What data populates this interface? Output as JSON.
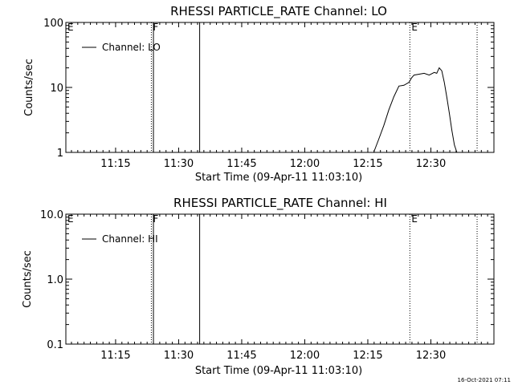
{
  "chart_data": [
    {
      "type": "line",
      "title": "RHESSI PARTICLE_RATE Channel: LO",
      "xlabel": "Start Time (09-Apr-11 11:03:10)",
      "ylabel": "Counts/sec",
      "y_scale": "log",
      "ylim": [
        1,
        100
      ],
      "y_ticks": [
        "1",
        "10",
        "100"
      ],
      "x_tick_labels": [
        "11:15",
        "11:30",
        "11:45",
        "12:00",
        "12:15",
        "12:30"
      ],
      "x_ticks_min": [
        11.25,
        11.5,
        11.75,
        12.0,
        12.25,
        12.5
      ],
      "xlim_min": [
        11.05278,
        12.75
      ],
      "legend": "Channel: LO",
      "legend_position": "top-left",
      "markers": [
        {
          "label": "E",
          "time_min": 11.05278,
          "style": "none"
        },
        {
          "label": "F",
          "time_min": 11.3917,
          "style": "dotted"
        },
        {
          "label": "",
          "time_min": 11.4,
          "style": "solid"
        },
        {
          "label": "",
          "time_min": 11.5833,
          "style": "solid"
        },
        {
          "label": "E",
          "time_min": 12.4167,
          "style": "dotted"
        },
        {
          "label": "",
          "time_min": 12.6833,
          "style": "dotted"
        }
      ],
      "series": [
        {
          "name": "Channel: LO",
          "x_min": [
            12.2733,
            12.2933,
            12.3133,
            12.3333,
            12.3533,
            12.3733,
            12.3933,
            12.4133,
            12.4233,
            12.4333,
            12.4533,
            12.4733,
            12.4933,
            12.5133,
            12.5233,
            12.5333,
            12.5433,
            12.5533,
            12.5633,
            12.5733,
            12.5833,
            12.5933,
            12.6033
          ],
          "y": [
            1.0,
            1.6,
            2.6,
            4.5,
            7.2,
            10.5,
            10.8,
            12.0,
            14.0,
            15.5,
            16.0,
            16.5,
            15.5,
            17.0,
            16.5,
            20.0,
            18.0,
            12.0,
            7.0,
            4.0,
            2.2,
            1.3,
            1.0
          ]
        }
      ]
    },
    {
      "type": "line",
      "title": "RHESSI PARTICLE_RATE Channel: HI",
      "xlabel": "Start Time (09-Apr-11 11:03:10)",
      "ylabel": "Counts/sec",
      "y_scale": "log",
      "ylim": [
        0.1,
        10.0
      ],
      "y_ticks": [
        "0.1",
        "1.0",
        "10.0"
      ],
      "x_tick_labels": [
        "11:15",
        "11:30",
        "11:45",
        "12:00",
        "12:15",
        "12:30"
      ],
      "x_ticks_min": [
        11.25,
        11.5,
        11.75,
        12.0,
        12.25,
        12.5
      ],
      "xlim_min": [
        11.05278,
        12.75
      ],
      "legend": "Channel: HI",
      "legend_position": "top-left",
      "markers": [
        {
          "label": "E",
          "time_min": 11.05278,
          "style": "none"
        },
        {
          "label": "F",
          "time_min": 11.3917,
          "style": "dotted"
        },
        {
          "label": "",
          "time_min": 11.4,
          "style": "solid"
        },
        {
          "label": "",
          "time_min": 11.5833,
          "style": "solid"
        },
        {
          "label": "E",
          "time_min": 12.4167,
          "style": "dotted"
        },
        {
          "label": "",
          "time_min": 12.6833,
          "style": "dotted"
        }
      ],
      "series": [
        {
          "name": "Channel: HI",
          "x_min": [],
          "y": []
        }
      ]
    }
  ],
  "footer": {
    "timestamp": "16-Oct-2021 07:11"
  }
}
